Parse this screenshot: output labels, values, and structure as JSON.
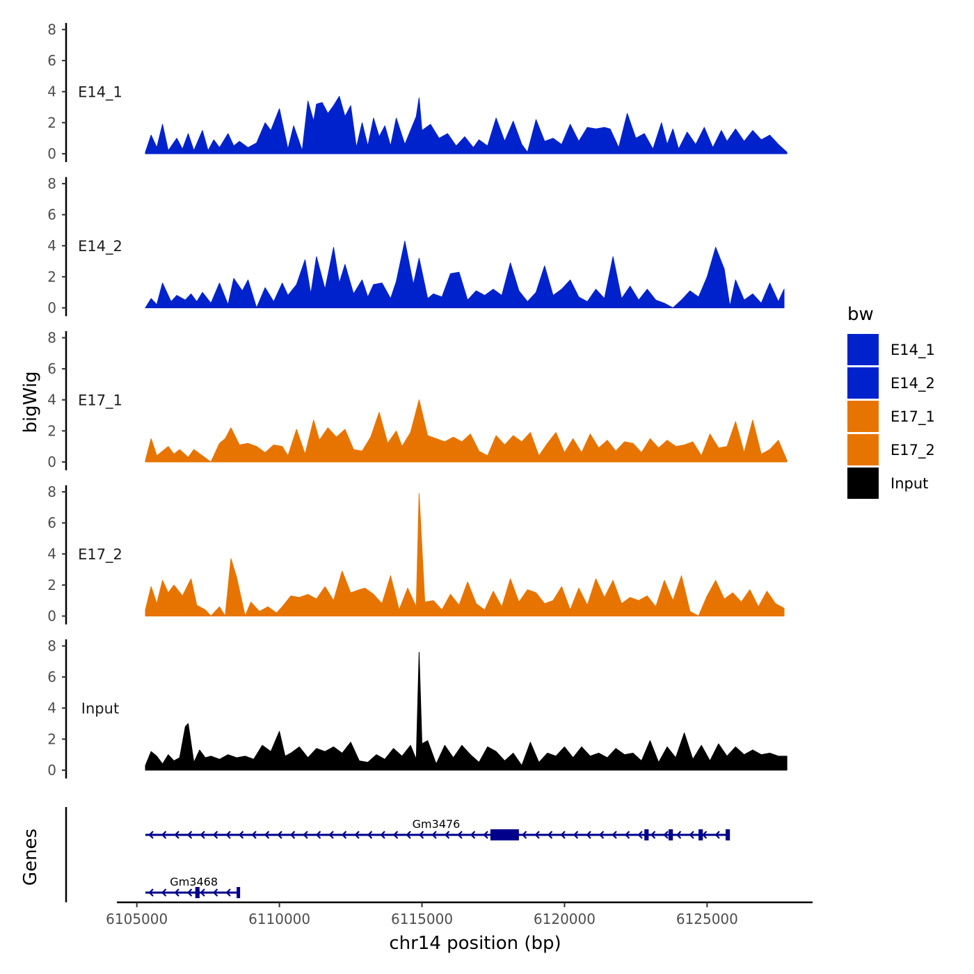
{
  "chart_data": {
    "type": "area",
    "ylabel": "bigWig",
    "xlabel": "chr14 position (bp)",
    "genes_label": "Genes",
    "xlim": [
      6104300,
      6128700
    ],
    "x_ticks": [
      6105000,
      6110000,
      6115000,
      6120000,
      6125000
    ],
    "x_tick_labels": [
      "6105000",
      "6110000",
      "6115000",
      "6120000",
      "6125000"
    ],
    "ylim": [
      0,
      8.2
    ],
    "y_ticks": [
      0,
      2,
      4,
      6,
      8
    ],
    "y_tick_labels": [
      "0",
      "2",
      "4",
      "6",
      "8"
    ],
    "legend": {
      "title": "bw",
      "items": [
        {
          "label": "E14_1",
          "color": "#0022CC"
        },
        {
          "label": "E14_2",
          "color": "#0022CC"
        },
        {
          "label": "E17_1",
          "color": "#E87400"
        },
        {
          "label": "E17_2",
          "color": "#E87400"
        },
        {
          "label": "Input",
          "color": "#000000"
        }
      ]
    },
    "series": [
      {
        "name": "E14_1",
        "color": "#0022CC",
        "x": [
          6105300,
          6105500,
          6105700,
          6105900,
          6106100,
          6106400,
          6106600,
          6106800,
          6107000,
          6107300,
          6107500,
          6107700,
          6107900,
          6108200,
          6108400,
          6108600,
          6108900,
          6109200,
          6109500,
          6109700,
          6110000,
          6110300,
          6110500,
          6110800,
          6111000,
          6111200,
          6111300,
          6111500,
          6111700,
          6111900,
          6112100,
          6112300,
          6112500,
          6112700,
          6112900,
          6113100,
          6113300,
          6113500,
          6113700,
          6113900,
          6114100,
          6114400,
          6114600,
          6114800,
          6114900,
          6115000,
          6115300,
          6115600,
          6115900,
          6116200,
          6116500,
          6116800,
          6117000,
          6117300,
          6117600,
          6117900,
          6118200,
          6118500,
          6118700,
          6119000,
          6119300,
          6119600,
          6119900,
          6120200,
          6120500,
          6120800,
          6121100,
          6121400,
          6121600,
          6121900,
          6122200,
          6122500,
          6122800,
          6123100,
          6123400,
          6123600,
          6123800,
          6124000,
          6124300,
          6124600,
          6124900,
          6125200,
          6125500,
          6125700,
          6126000,
          6126300,
          6126600,
          6126900,
          6127200,
          6127500,
          6127800
        ],
        "y": [
          0.1,
          1.2,
          0.4,
          1.9,
          0.2,
          1.0,
          0.3,
          1.3,
          0.2,
          1.5,
          0.2,
          0.9,
          0.4,
          1.3,
          0.5,
          0.8,
          0.4,
          0.7,
          2.0,
          1.5,
          2.9,
          0.3,
          1.8,
          0.2,
          3.4,
          2.1,
          3.2,
          3.3,
          2.6,
          3.1,
          3.7,
          2.4,
          3.1,
          0.4,
          2.0,
          0.5,
          2.3,
          1.1,
          1.8,
          0.5,
          2.3,
          0.6,
          1.5,
          2.4,
          3.6,
          1.5,
          1.9,
          1.0,
          1.3,
          0.5,
          1.1,
          0.4,
          0.9,
          0.5,
          2.3,
          0.8,
          2.1,
          0.6,
          0.1,
          2.2,
          0.8,
          1.0,
          0.6,
          1.9,
          0.8,
          1.7,
          1.6,
          1.7,
          1.6,
          0.4,
          2.6,
          1.0,
          1.3,
          0.3,
          2.0,
          0.6,
          1.6,
          0.3,
          1.4,
          0.6,
          1.7,
          0.4,
          1.5,
          0.8,
          1.6,
          0.8,
          1.5,
          0.9,
          1.2,
          0.6,
          0.1
        ]
      },
      {
        "name": "E14_2",
        "color": "#0022CC",
        "x": [
          6105300,
          6105500,
          6105700,
          6105900,
          6106200,
          6106400,
          6106700,
          6106900,
          6107100,
          6107300,
          6107600,
          6107900,
          6108200,
          6108400,
          6108700,
          6108900,
          6109200,
          6109500,
          6109800,
          6110100,
          6110300,
          6110600,
          6110900,
          6111100,
          6111300,
          6111600,
          6111900,
          6112100,
          6112300,
          6112600,
          6112900,
          6113100,
          6113300,
          6113600,
          6113900,
          6114100,
          6114400,
          6114700,
          6114900,
          6115200,
          6115400,
          6115700,
          6116000,
          6116300,
          6116600,
          6116900,
          6117200,
          6117500,
          6117800,
          6118100,
          6118400,
          6118700,
          6119000,
          6119300,
          6119600,
          6119900,
          6120200,
          6120500,
          6120800,
          6121100,
          6121400,
          6121700,
          6122000,
          6122300,
          6122600,
          6122900,
          6123200,
          6123500,
          6123800,
          6124100,
          6124400,
          6124700,
          6125000,
          6125300,
          6125600,
          6125800,
          6126000,
          6126300,
          6126600,
          6126900,
          6127200,
          6127500,
          6127700
        ],
        "y": [
          0.0,
          0.6,
          0.2,
          1.6,
          0.4,
          0.8,
          0.5,
          0.9,
          0.4,
          1.0,
          0.3,
          1.6,
          0.2,
          1.9,
          1.1,
          1.8,
          0.0,
          1.3,
          0.4,
          1.6,
          0.8,
          1.5,
          3.1,
          0.9,
          3.3,
          1.2,
          3.9,
          1.6,
          2.8,
          0.9,
          1.8,
          0.7,
          1.5,
          1.6,
          0.6,
          1.7,
          4.3,
          1.5,
          3.2,
          0.6,
          0.9,
          0.7,
          2.2,
          2.3,
          0.5,
          1.1,
          0.8,
          1.2,
          0.8,
          2.9,
          1.1,
          0.4,
          1.0,
          2.7,
          0.8,
          1.2,
          1.8,
          0.7,
          0.4,
          1.2,
          0.6,
          3.3,
          0.6,
          1.4,
          0.5,
          1.2,
          0.5,
          0.3,
          0.0,
          0.5,
          1.1,
          0.7,
          2.0,
          3.9,
          2.5,
          0.1,
          1.8,
          0.5,
          0.9,
          0.3,
          1.6,
          0.4,
          1.2
        ]
      },
      {
        "name": "E17_1",
        "color": "#E87400",
        "x": [
          6105300,
          6105500,
          6105700,
          6105900,
          6106100,
          6106300,
          6106500,
          6106800,
          6107000,
          6107300,
          6107600,
          6107900,
          6108100,
          6108300,
          6108600,
          6108900,
          6109200,
          6109500,
          6109800,
          6110100,
          6110300,
          6110600,
          6110900,
          6111200,
          6111400,
          6111700,
          6112000,
          6112300,
          6112600,
          6112900,
          6113200,
          6113500,
          6113800,
          6114100,
          6114300,
          6114600,
          6114900,
          6115200,
          6115500,
          6115800,
          6116100,
          6116400,
          6116700,
          6117000,
          6117300,
          6117600,
          6117900,
          6118200,
          6118500,
          6118800,
          6119100,
          6119400,
          6119700,
          6120000,
          6120300,
          6120600,
          6120900,
          6121200,
          6121500,
          6121800,
          6122100,
          6122400,
          6122700,
          6123000,
          6123300,
          6123600,
          6123900,
          6124200,
          6124500,
          6124800,
          6125100,
          6125400,
          6125700,
          6126000,
          6126300,
          6126600,
          6126900,
          6127200,
          6127500,
          6127800
        ],
        "y": [
          0.1,
          1.5,
          0.4,
          0.7,
          1.0,
          0.5,
          0.8,
          0.3,
          0.8,
          0.4,
          0.0,
          1.2,
          1.5,
          2.2,
          1.1,
          1.2,
          1.0,
          0.6,
          1.1,
          1.0,
          0.4,
          2.1,
          0.5,
          2.7,
          1.4,
          2.2,
          1.6,
          2.1,
          0.8,
          0.7,
          1.6,
          3.2,
          1.2,
          2.0,
          1.0,
          1.9,
          4.0,
          1.7,
          1.5,
          1.3,
          1.6,
          1.3,
          1.8,
          0.7,
          0.4,
          1.7,
          1.1,
          1.7,
          1.3,
          1.9,
          0.4,
          1.2,
          1.9,
          0.6,
          1.5,
          0.6,
          1.8,
          0.9,
          1.4,
          0.7,
          1.3,
          1.2,
          0.6,
          1.5,
          0.9,
          1.4,
          1.0,
          1.1,
          1.3,
          0.4,
          1.8,
          0.9,
          1.0,
          2.6,
          0.6,
          2.7,
          0.5,
          0.8,
          1.4,
          0.1
        ]
      },
      {
        "name": "E17_2",
        "color": "#E87400",
        "x": [
          6105300,
          6105500,
          6105700,
          6105900,
          6106100,
          6106300,
          6106600,
          6106900,
          6107100,
          6107400,
          6107600,
          6107900,
          6108100,
          6108300,
          6108500,
          6108800,
          6109000,
          6109300,
          6109600,
          6109900,
          6110100,
          6110400,
          6110700,
          6111000,
          6111300,
          6111600,
          6111900,
          6112200,
          6112500,
          6112800,
          6113000,
          6113300,
          6113600,
          6113900,
          6114200,
          6114500,
          6114800,
          6114900,
          6115100,
          6115400,
          6115700,
          6116000,
          6116300,
          6116600,
          6116900,
          6117200,
          6117500,
          6117800,
          6118100,
          6118400,
          6118700,
          6119000,
          6119300,
          6119600,
          6119900,
          6120200,
          6120500,
          6120800,
          6121100,
          6121400,
          6121700,
          6122000,
          6122300,
          6122600,
          6122900,
          6123200,
          6123500,
          6123800,
          6124100,
          6124400,
          6124700,
          6125000,
          6125300,
          6125600,
          6125900,
          6126200,
          6126500,
          6126800,
          6127100,
          6127400,
          6127700
        ],
        "y": [
          0.4,
          1.9,
          0.8,
          2.3,
          1.5,
          2.0,
          1.3,
          2.4,
          0.7,
          0.4,
          0.0,
          0.6,
          0.0,
          3.7,
          2.5,
          0.0,
          0.9,
          0.3,
          0.6,
          0.2,
          0.6,
          1.3,
          1.2,
          1.4,
          1.1,
          1.9,
          1.0,
          2.9,
          1.5,
          1.7,
          1.8,
          1.4,
          0.8,
          2.6,
          0.4,
          1.8,
          0.6,
          7.9,
          0.9,
          1.0,
          0.4,
          1.4,
          0.7,
          2.2,
          0.8,
          0.4,
          1.6,
          0.6,
          2.4,
          0.9,
          1.7,
          1.5,
          0.8,
          1.0,
          1.9,
          0.4,
          1.8,
          0.7,
          2.4,
          1.2,
          2.3,
          0.8,
          1.2,
          1.0,
          1.3,
          0.6,
          2.3,
          1.0,
          2.6,
          0.3,
          0.0,
          1.3,
          2.3,
          1.1,
          1.5,
          0.9,
          1.7,
          0.6,
          1.6,
          0.8,
          0.5
        ]
      },
      {
        "name": "Input",
        "color": "#000000",
        "x": [
          6105300,
          6105500,
          6105700,
          6105900,
          6106100,
          6106300,
          6106500,
          6106700,
          6106800,
          6107000,
          6107200,
          6107400,
          6107600,
          6107900,
          6108200,
          6108500,
          6108800,
          6109100,
          6109400,
          6109700,
          6110000,
          6110200,
          6110400,
          6110700,
          6111000,
          6111300,
          6111600,
          6111900,
          6112200,
          6112500,
          6112800,
          6113100,
          6113400,
          6113700,
          6114000,
          6114300,
          6114600,
          6114800,
          6114900,
          6115000,
          6115200,
          6115500,
          6115800,
          6116100,
          6116400,
          6116700,
          6117000,
          6117300,
          6117600,
          6117900,
          6118200,
          6118500,
          6118800,
          6119100,
          6119400,
          6119700,
          6120000,
          6120300,
          6120600,
          6120900,
          6121200,
          6121500,
          6121800,
          6122100,
          6122400,
          6122700,
          6123000,
          6123300,
          6123600,
          6123900,
          6124200,
          6124500,
          6124800,
          6125100,
          6125400,
          6125700,
          6126000,
          6126300,
          6126600,
          6126900,
          6127200,
          6127500,
          6127800
        ],
        "y": [
          0.3,
          1.2,
          0.9,
          0.4,
          1.0,
          0.6,
          0.8,
          2.8,
          3.0,
          0.5,
          1.3,
          0.8,
          0.9,
          0.7,
          1.0,
          0.8,
          0.9,
          0.7,
          1.6,
          1.2,
          2.5,
          0.9,
          1.1,
          1.5,
          0.8,
          1.4,
          1.2,
          1.5,
          1.1,
          1.8,
          0.6,
          0.5,
          1.0,
          0.7,
          1.4,
          0.9,
          1.6,
          0.7,
          7.6,
          1.7,
          1.9,
          0.4,
          1.6,
          0.8,
          1.6,
          1.0,
          0.5,
          1.5,
          1.2,
          0.6,
          1.1,
          0.3,
          1.8,
          0.5,
          1.1,
          0.9,
          1.5,
          0.8,
          1.5,
          0.9,
          1.1,
          0.8,
          1.4,
          1.0,
          1.1,
          0.6,
          1.9,
          0.5,
          1.5,
          0.8,
          2.4,
          0.7,
          1.6,
          0.6,
          1.7,
          0.9,
          1.5,
          1.0,
          1.3,
          1.0,
          1.1,
          0.9,
          0.9
        ]
      }
    ],
    "genes": [
      {
        "name": "Gm3476",
        "start": 6105300,
        "end": 6125800,
        "strand": "-",
        "exons": [
          [
            6117400,
            6118400
          ],
          [
            6122800,
            6122950
          ],
          [
            6123650,
            6123800
          ],
          [
            6124700,
            6124850
          ],
          [
            6125650,
            6125800
          ]
        ]
      },
      {
        "name": "Gm3468",
        "start": 6105300,
        "end": 6108600,
        "strand": "-",
        "exons": [
          [
            6107050,
            6107200
          ],
          [
            6108500,
            6108600
          ]
        ]
      }
    ]
  }
}
